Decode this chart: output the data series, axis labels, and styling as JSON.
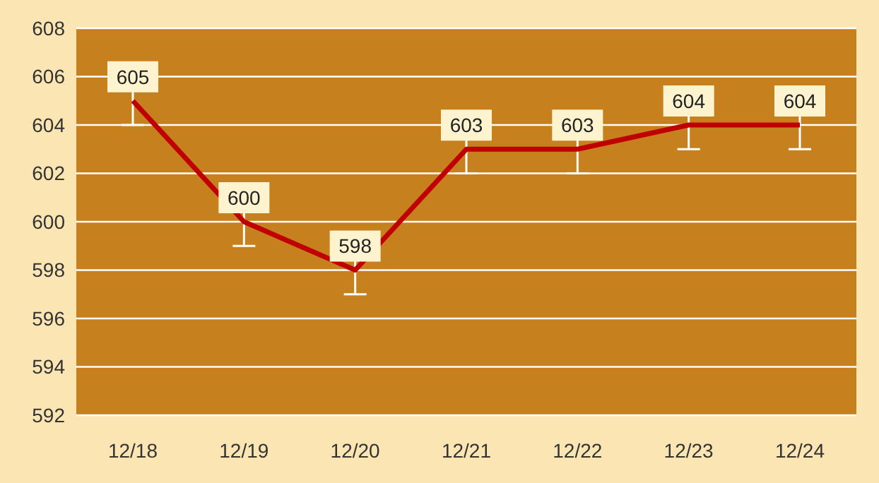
{
  "chart_data": {
    "type": "line",
    "categories": [
      "12/18",
      "12/19",
      "12/20",
      "12/21",
      "12/22",
      "12/23",
      "12/24"
    ],
    "values": [
      605,
      600,
      598,
      603,
      603,
      604,
      604
    ],
    "errors": [
      1,
      1,
      1,
      1,
      1,
      1,
      1
    ],
    "color": "#c00000",
    "ylim": [
      592,
      608
    ],
    "yticks": [
      592,
      594,
      596,
      598,
      600,
      602,
      604,
      606,
      608
    ],
    "grid": "y",
    "marker": "none",
    "line_style": "solid",
    "data_labels": true
  }
}
